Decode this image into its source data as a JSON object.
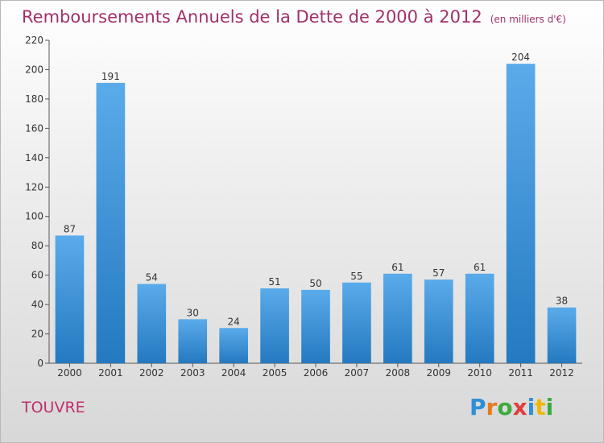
{
  "title": "Remboursements Annuels de la Dette de 2000 à 2012",
  "subtitle": "(en milliers d'€)",
  "commune": "TOUVRE",
  "logo_text": "Proxiti",
  "colors": {
    "bar_top": "#5aabea",
    "bar_bottom": "#2479c0",
    "title": "#a0306a",
    "commune": "#c0306e"
  },
  "chart_data": {
    "type": "bar",
    "title": "Remboursements Annuels de la Dette de 2000 à 2012",
    "subtitle": "(en milliers d'€)",
    "categories": [
      "2000",
      "2001",
      "2002",
      "2003",
      "2004",
      "2005",
      "2006",
      "2007",
      "2008",
      "2009",
      "2010",
      "2011",
      "2012"
    ],
    "values": [
      87,
      191,
      54,
      30,
      24,
      51,
      50,
      55,
      61,
      57,
      61,
      204,
      38
    ],
    "ylim": [
      0,
      220
    ],
    "yticks": [
      0,
      20,
      40,
      60,
      80,
      100,
      120,
      140,
      160,
      180,
      200,
      220
    ],
    "grid": false,
    "data_labels": true
  }
}
